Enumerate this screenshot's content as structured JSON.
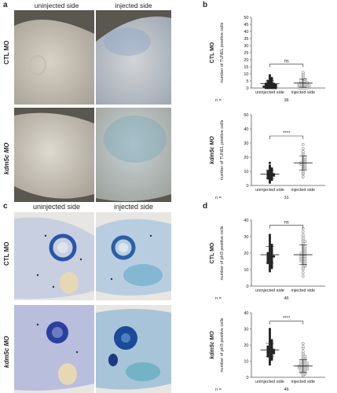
{
  "panels": {
    "a": {
      "letter": "a",
      "col_left": "uninjected side",
      "col_right": "injected side",
      "row_top": "CTL MO",
      "row_bottom": "kdm5c MO"
    },
    "b": {
      "letter": "b"
    },
    "c": {
      "letter": "c",
      "col_left": "uninjected side",
      "col_right": "injected side",
      "row_top": "CTL MO",
      "row_bottom": "kdm5c MO"
    },
    "d": {
      "letter": "d"
    }
  },
  "chart_data": [
    {
      "type": "scatter",
      "panel": "b",
      "title": "CTL MO",
      "ylabel": "number of TUNEL positive cells",
      "ylim": [
        0,
        50
      ],
      "yticks": [
        0,
        5,
        10,
        15,
        20,
        25,
        30,
        35,
        40,
        45,
        50
      ],
      "categories": [
        "uninjected side",
        "injected side"
      ],
      "significance": "ns",
      "n_label": "n =",
      "n_value": "36",
      "series": [
        {
          "values": [
            0,
            0,
            0,
            0,
            0,
            0,
            1,
            1,
            1,
            1,
            1,
            1,
            1,
            2,
            2,
            2,
            2,
            2,
            2,
            3,
            3,
            3,
            3,
            3,
            4,
            4,
            4,
            5,
            5,
            5,
            6,
            6,
            7,
            7,
            8,
            9
          ],
          "mean": 3,
          "sd": 2.5
        },
        {
          "values": [
            0,
            0,
            0,
            0,
            0,
            1,
            1,
            1,
            1,
            1,
            1,
            2,
            2,
            2,
            2,
            2,
            2,
            3,
            3,
            3,
            3,
            3,
            4,
            4,
            4,
            4,
            5,
            5,
            5,
            6,
            6,
            7,
            8,
            9,
            10,
            11
          ],
          "mean": 3.5,
          "sd": 3
        }
      ]
    },
    {
      "type": "scatter",
      "panel": "b",
      "title": "kdm5c MO",
      "ylabel": "number of TUNEL positive cells",
      "ylim": [
        0,
        50
      ],
      "yticks": [
        0,
        10,
        20,
        30,
        40,
        50
      ],
      "categories": [
        "uninjected side",
        "injected side"
      ],
      "significance": "****",
      "n_label": "n =",
      "n_value": "31",
      "series": [
        {
          "values": [
            2,
            3,
            4,
            4,
            5,
            5,
            5,
            6,
            6,
            6,
            7,
            7,
            7,
            7,
            8,
            8,
            8,
            8,
            9,
            9,
            9,
            10,
            10,
            10,
            11,
            11,
            12,
            12,
            13,
            14,
            16
          ],
          "mean": 8,
          "sd": 3
        },
        {
          "values": [
            6,
            8,
            9,
            10,
            11,
            12,
            12,
            13,
            13,
            14,
            14,
            15,
            15,
            15,
            16,
            16,
            16,
            17,
            17,
            18,
            18,
            19,
            19,
            20,
            20,
            21,
            22,
            23,
            24,
            26,
            29
          ],
          "mean": 16,
          "sd": 5
        }
      ]
    },
    {
      "type": "scatter",
      "panel": "d",
      "title": "CTL MO",
      "ylabel": "number of pH3 positive cells",
      "ylim": [
        0,
        40
      ],
      "yticks": [
        0,
        10,
        20,
        30,
        40
      ],
      "categories": [
        "uninjected side",
        "injected side"
      ],
      "significance": "ns",
      "n_label": "n =",
      "n_value": "46",
      "series": [
        {
          "values": [
            9,
            10,
            11,
            11,
            12,
            12,
            13,
            13,
            14,
            14,
            14,
            15,
            15,
            15,
            16,
            16,
            16,
            17,
            17,
            17,
            18,
            18,
            18,
            18,
            19,
            19,
            19,
            20,
            20,
            20,
            21,
            21,
            22,
            22,
            23,
            23,
            24,
            24,
            25,
            25,
            26,
            27,
            28,
            29,
            30,
            31
          ],
          "mean": 19,
          "sd": 5
        },
        {
          "values": [
            6,
            8,
            10,
            11,
            12,
            12,
            13,
            13,
            14,
            14,
            15,
            15,
            15,
            16,
            16,
            16,
            17,
            17,
            17,
            18,
            18,
            18,
            19,
            19,
            19,
            20,
            20,
            20,
            21,
            21,
            22,
            22,
            23,
            23,
            24,
            24,
            25,
            26,
            27,
            27,
            28,
            29,
            30,
            31,
            33,
            35
          ],
          "mean": 19,
          "sd": 6
        }
      ]
    },
    {
      "type": "scatter",
      "panel": "d",
      "title": "kdm5c MO",
      "ylabel": "number of pH3 positive cells",
      "ylim": [
        0,
        40
      ],
      "yticks": [
        0,
        10,
        20,
        30,
        40
      ],
      "categories": [
        "uninjected side",
        "injected side"
      ],
      "significance": "****",
      "n_label": "n =",
      "n_value": "46",
      "series": [
        {
          "values": [
            8,
            9,
            10,
            11,
            11,
            12,
            12,
            13,
            13,
            13,
            14,
            14,
            14,
            15,
            15,
            15,
            15,
            16,
            16,
            16,
            16,
            17,
            17,
            17,
            17,
            18,
            18,
            18,
            19,
            19,
            19,
            20,
            20,
            21,
            21,
            22,
            22,
            23,
            23,
            24,
            25,
            26,
            27,
            28,
            29,
            30
          ],
          "mean": 17,
          "sd": 4
        },
        {
          "values": [
            1,
            2,
            2,
            3,
            3,
            3,
            4,
            4,
            4,
            5,
            5,
            5,
            5,
            6,
            6,
            6,
            6,
            6,
            7,
            7,
            7,
            7,
            7,
            8,
            8,
            8,
            8,
            9,
            9,
            9,
            9,
            10,
            10,
            10,
            11,
            11,
            12,
            12,
            13,
            13,
            14,
            15,
            16,
            18,
            19,
            21
          ],
          "mean": 7,
          "sd": 4
        }
      ]
    }
  ]
}
